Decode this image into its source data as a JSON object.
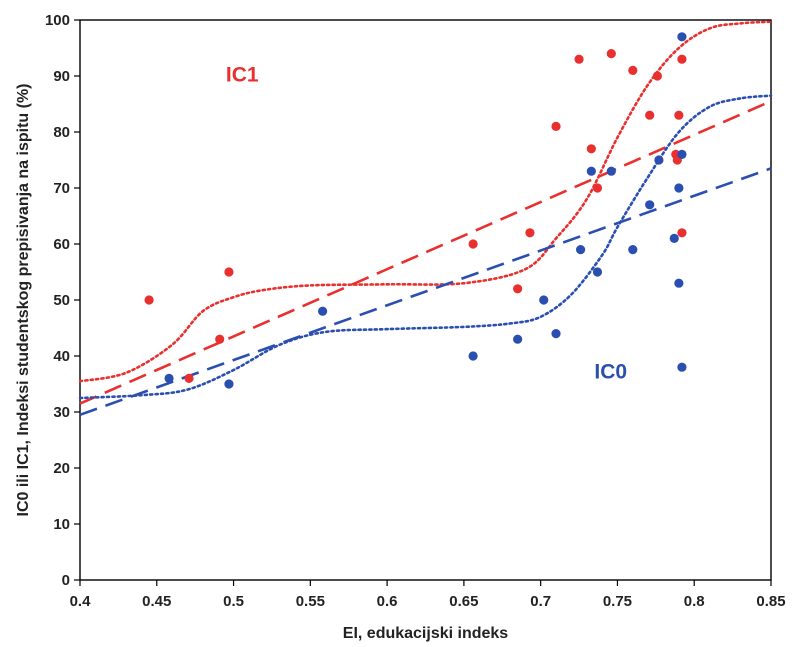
{
  "chart_data": {
    "type": "scatter",
    "xlabel": "EI, edukacijski indeks",
    "ylabel": "IC0 ili IC1, Indeksi studentskog prepisivanja na ispitu (%)",
    "xlim": [
      0.4,
      0.85
    ],
    "ylim": [
      0,
      100
    ],
    "x_ticks": [
      0.4,
      0.45,
      0.5,
      0.55,
      0.6,
      0.65,
      0.7,
      0.75,
      0.8,
      0.85
    ],
    "x_tick_labels": [
      "0.4",
      "0.45",
      "0.5",
      "0.55",
      "0.6",
      "0.65",
      "0.7",
      "0.75",
      "0.8",
      "0.85"
    ],
    "y_ticks": [
      0,
      10,
      20,
      30,
      40,
      50,
      60,
      70,
      80,
      90,
      100
    ],
    "y_tick_labels": [
      "0",
      "10",
      "20",
      "30",
      "40",
      "50",
      "60",
      "70",
      "80",
      "90",
      "100"
    ],
    "grid": false,
    "series": [
      {
        "name": "IC1",
        "color": "#e8312f",
        "label_position": {
          "x": 0.495,
          "y": 89
        },
        "points": [
          {
            "x": 0.445,
            "y": 50
          },
          {
            "x": 0.471,
            "y": 36
          },
          {
            "x": 0.491,
            "y": 43
          },
          {
            "x": 0.497,
            "y": 55
          },
          {
            "x": 0.656,
            "y": 60
          },
          {
            "x": 0.685,
            "y": 52
          },
          {
            "x": 0.693,
            "y": 62
          },
          {
            "x": 0.71,
            "y": 81
          },
          {
            "x": 0.725,
            "y": 93
          },
          {
            "x": 0.733,
            "y": 77
          },
          {
            "x": 0.737,
            "y": 70
          },
          {
            "x": 0.746,
            "y": 94
          },
          {
            "x": 0.76,
            "y": 91
          },
          {
            "x": 0.771,
            "y": 83
          },
          {
            "x": 0.776,
            "y": 90
          },
          {
            "x": 0.788,
            "y": 76
          },
          {
            "x": 0.789,
            "y": 75
          },
          {
            "x": 0.79,
            "y": 83
          },
          {
            "x": 0.792,
            "y": 93
          },
          {
            "x": 0.792,
            "y": 62
          }
        ],
        "linear_trend": [
          {
            "x": 0.4,
            "y": 31.5
          },
          {
            "x": 0.85,
            "y": 85.5
          }
        ],
        "smooth_fit": [
          {
            "x": 0.4,
            "y": 35.5
          },
          {
            "x": 0.43,
            "y": 37
          },
          {
            "x": 0.46,
            "y": 42
          },
          {
            "x": 0.48,
            "y": 48
          },
          {
            "x": 0.5,
            "y": 50.5
          },
          {
            "x": 0.52,
            "y": 51.8
          },
          {
            "x": 0.55,
            "y": 52.6
          },
          {
            "x": 0.6,
            "y": 52.8
          },
          {
            "x": 0.65,
            "y": 53
          },
          {
            "x": 0.69,
            "y": 55.5
          },
          {
            "x": 0.71,
            "y": 61
          },
          {
            "x": 0.73,
            "y": 68
          },
          {
            "x": 0.75,
            "y": 79
          },
          {
            "x": 0.77,
            "y": 88.5
          },
          {
            "x": 0.79,
            "y": 95
          },
          {
            "x": 0.81,
            "y": 98.5
          },
          {
            "x": 0.83,
            "y": 99.4
          },
          {
            "x": 0.85,
            "y": 99.7
          }
        ]
      },
      {
        "name": "IC0",
        "color": "#2b4fb0",
        "label_position": {
          "x": 0.735,
          "y": 36
        },
        "points": [
          {
            "x": 0.458,
            "y": 36
          },
          {
            "x": 0.497,
            "y": 35
          },
          {
            "x": 0.558,
            "y": 48
          },
          {
            "x": 0.656,
            "y": 40
          },
          {
            "x": 0.685,
            "y": 43
          },
          {
            "x": 0.702,
            "y": 50
          },
          {
            "x": 0.71,
            "y": 44
          },
          {
            "x": 0.726,
            "y": 59
          },
          {
            "x": 0.733,
            "y": 73
          },
          {
            "x": 0.737,
            "y": 55
          },
          {
            "x": 0.746,
            "y": 73
          },
          {
            "x": 0.76,
            "y": 59
          },
          {
            "x": 0.771,
            "y": 67
          },
          {
            "x": 0.777,
            "y": 75
          },
          {
            "x": 0.787,
            "y": 61
          },
          {
            "x": 0.79,
            "y": 70
          },
          {
            "x": 0.79,
            "y": 53
          },
          {
            "x": 0.792,
            "y": 76
          },
          {
            "x": 0.792,
            "y": 38
          },
          {
            "x": 0.792,
            "y": 97
          }
        ],
        "linear_trend": [
          {
            "x": 0.4,
            "y": 29.5
          },
          {
            "x": 0.85,
            "y": 73.5
          }
        ],
        "smooth_fit": [
          {
            "x": 0.4,
            "y": 32.5
          },
          {
            "x": 0.44,
            "y": 33
          },
          {
            "x": 0.47,
            "y": 34
          },
          {
            "x": 0.5,
            "y": 37.5
          },
          {
            "x": 0.53,
            "y": 42
          },
          {
            "x": 0.56,
            "y": 44.3
          },
          {
            "x": 0.6,
            "y": 44.8
          },
          {
            "x": 0.65,
            "y": 45.2
          },
          {
            "x": 0.68,
            "y": 45.8
          },
          {
            "x": 0.7,
            "y": 47
          },
          {
            "x": 0.72,
            "y": 51
          },
          {
            "x": 0.74,
            "y": 58
          },
          {
            "x": 0.75,
            "y": 63
          },
          {
            "x": 0.77,
            "y": 72
          },
          {
            "x": 0.79,
            "y": 80
          },
          {
            "x": 0.81,
            "y": 84.5
          },
          {
            "x": 0.83,
            "y": 86
          },
          {
            "x": 0.85,
            "y": 86.5
          }
        ]
      }
    ]
  }
}
